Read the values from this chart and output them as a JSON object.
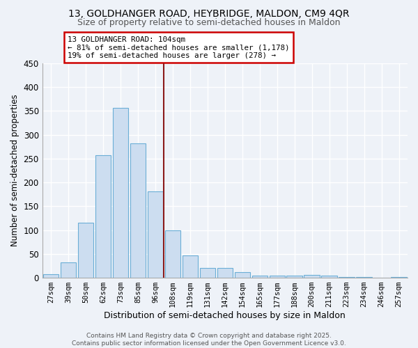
{
  "title1": "13, GOLDHANGER ROAD, HEYBRIDGE, MALDON, CM9 4QR",
  "title2": "Size of property relative to semi-detached houses in Maldon",
  "xlabel": "Distribution of semi-detached houses by size in Maldon",
  "ylabel": "Number of semi-detached properties",
  "categories": [
    "27sqm",
    "39sqm",
    "50sqm",
    "62sqm",
    "73sqm",
    "85sqm",
    "96sqm",
    "108sqm",
    "119sqm",
    "131sqm",
    "142sqm",
    "154sqm",
    "165sqm",
    "177sqm",
    "188sqm",
    "200sqm",
    "211sqm",
    "223sqm",
    "234sqm",
    "246sqm",
    "257sqm"
  ],
  "values": [
    7,
    32,
    115,
    257,
    357,
    282,
    181,
    100,
    47,
    21,
    21,
    12,
    5,
    5,
    5,
    6,
    4,
    2,
    2,
    0,
    2
  ],
  "bar_color": "#ccddf0",
  "bar_edge_color": "#6baed6",
  "vline_color": "#8b1a1a",
  "annotation_text": "13 GOLDHANGER ROAD: 104sqm\n← 81% of semi-detached houses are smaller (1,178)\n19% of semi-detached houses are larger (278) →",
  "annotation_box_color": "#ffffff",
  "annotation_box_edge": "#cc0000",
  "footer1": "Contains HM Land Registry data © Crown copyright and database right 2025.",
  "footer2": "Contains public sector information licensed under the Open Government Licence v3.0.",
  "ylim": [
    0,
    450
  ],
  "yticks": [
    0,
    50,
    100,
    150,
    200,
    250,
    300,
    350,
    400,
    450
  ],
  "bg_color": "#eef2f8",
  "grid_color": "#ffffff",
  "title_fontsize": 10,
  "subtitle_fontsize": 9
}
